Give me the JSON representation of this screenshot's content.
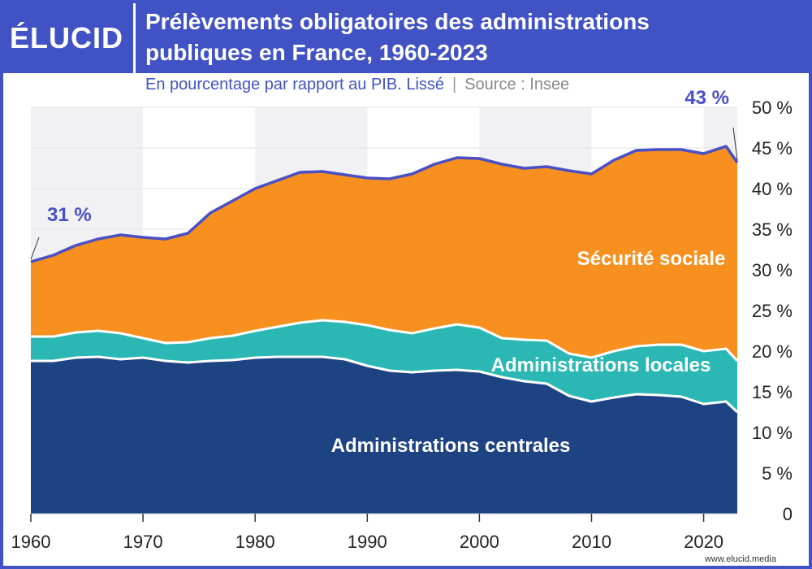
{
  "logo": "ÉLUCID",
  "footer": "www.elucid.media",
  "chart_data": {
    "type": "stacked_area",
    "title": "Prélèvements obligatoires des administrations publiques en France, 1960-2023",
    "subtitle": "En pourcentage par rapport au PIB. Lissé",
    "subtitle_separator": "|",
    "source": "Source : Insee",
    "x": [
      1960,
      1962,
      1964,
      1966,
      1968,
      1970,
      1972,
      1974,
      1976,
      1978,
      1980,
      1982,
      1984,
      1986,
      1988,
      1990,
      1992,
      1994,
      1996,
      1998,
      2000,
      2002,
      2004,
      2006,
      2008,
      2010,
      2012,
      2014,
      2016,
      2018,
      2020,
      2022,
      2023
    ],
    "xlim": [
      1960,
      2023
    ],
    "xticks": [
      1960,
      1970,
      1980,
      1990,
      2000,
      2010,
      2020
    ],
    "ylim": [
      0,
      50
    ],
    "yticks": [
      {
        "value": 0,
        "label": "0"
      },
      {
        "value": 5,
        "label": "5 %"
      },
      {
        "value": 10,
        "label": "10 %"
      },
      {
        "value": 15,
        "label": "15 %"
      },
      {
        "value": 20,
        "label": "20 %"
      },
      {
        "value": 25,
        "label": "25 %"
      },
      {
        "value": 30,
        "label": "30 %"
      },
      {
        "value": 35,
        "label": "35 %"
      },
      {
        "value": 40,
        "label": "40 %"
      },
      {
        "value": 45,
        "label": "45 %"
      },
      {
        "value": 50,
        "label": "50 %"
      }
    ],
    "grid": true,
    "series": [
      {
        "name": "Administrations centrales",
        "color": "#1d4382",
        "values": [
          18.8,
          18.8,
          19.2,
          19.3,
          19.0,
          19.2,
          18.8,
          18.6,
          18.8,
          18.9,
          19.2,
          19.3,
          19.3,
          19.3,
          19.0,
          18.2,
          17.6,
          17.4,
          17.6,
          17.7,
          17.5,
          16.8,
          16.3,
          16.0,
          14.5,
          13.8,
          14.3,
          14.7,
          14.6,
          14.4,
          13.5,
          13.8,
          12.5
        ]
      },
      {
        "name": "Administrations locales",
        "color": "#2bb8b4",
        "values": [
          3.0,
          3.0,
          3.1,
          3.2,
          3.2,
          2.4,
          2.2,
          2.5,
          2.8,
          3.0,
          3.3,
          3.7,
          4.2,
          4.5,
          4.6,
          5.0,
          5.0,
          4.8,
          5.2,
          5.6,
          5.4,
          4.8,
          5.1,
          5.3,
          5.2,
          5.4,
          5.7,
          5.9,
          6.2,
          6.4,
          6.5,
          6.5,
          6.3
        ]
      },
      {
        "name": "Sécurité sociale",
        "color": "#f7901f",
        "values": [
          9.2,
          10.0,
          10.7,
          11.3,
          12.1,
          12.4,
          12.8,
          13.4,
          15.4,
          16.6,
          17.5,
          18.0,
          18.5,
          18.3,
          18.1,
          18.1,
          18.6,
          19.6,
          20.2,
          20.5,
          20.8,
          21.4,
          21.1,
          21.4,
          22.5,
          22.6,
          23.5,
          24.1,
          24.0,
          24.0,
          24.3,
          24.9,
          24.4
        ]
      }
    ],
    "annotations": [
      {
        "text": "31 %",
        "x": 1960,
        "y": 31
      },
      {
        "text": "43 %",
        "x": 2023,
        "y": 43.2
      }
    ]
  }
}
